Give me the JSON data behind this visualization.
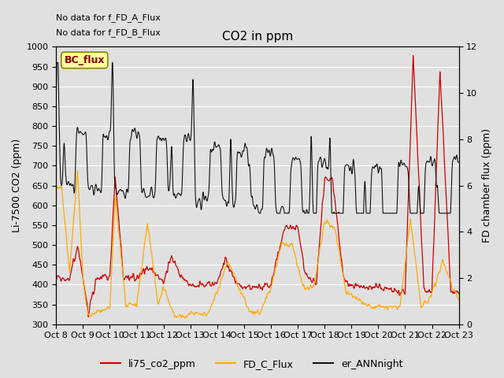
{
  "title": "CO2 in ppm",
  "ylabel_left": "Li-7500 CO2 (ppm)",
  "ylabel_right": "FD chamber flux (ppm)",
  "text_line1": "No data for f_FD_A_Flux",
  "text_line2": "No data for f_FD_B_Flux",
  "legend_bc": "BC_flux",
  "legend_entries": [
    "li75_co2_ppm",
    "FD_C_Flux",
    "er_ANNnight"
  ],
  "legend_colors": [
    "#cc0000",
    "#ffaa00",
    "#111111"
  ],
  "ylim_left": [
    300,
    1000
  ],
  "ylim_right": [
    0,
    12
  ],
  "yticks_left": [
    300,
    350,
    400,
    450,
    500,
    550,
    600,
    650,
    700,
    750,
    800,
    850,
    900,
    950,
    1000
  ],
  "yticks_right": [
    0,
    2,
    4,
    6,
    8,
    10,
    12
  ],
  "bg_color": "#e0e0e0",
  "grid_color": "#ffffff",
  "xtick_labels": [
    "Oct 8",
    "Oct 9",
    "Oct 10",
    "Oct 11",
    "Oct 12",
    "Oct 13",
    "Oct 14",
    "Oct 15",
    "Oct 16",
    "Oct 17",
    "Oct 18",
    "Oct 19",
    "Oct 20",
    "Oct 21",
    "Oct 22",
    "Oct 23"
  ],
  "n_points": 3000,
  "seed": 7
}
